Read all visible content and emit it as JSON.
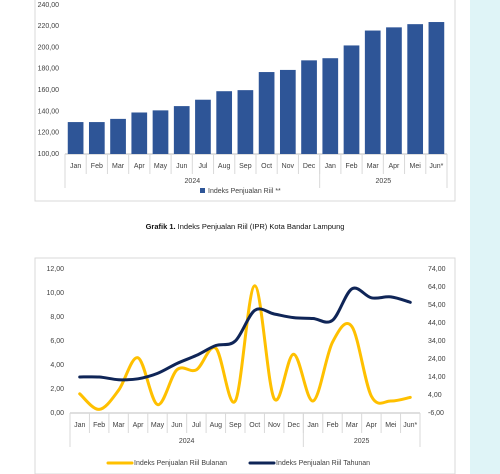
{
  "chart_data": [
    {
      "type": "bar",
      "caption_label": "Grafik 1.",
      "caption": "Indeks Penjualan Riil (IPR) Kota Bandar Lampung",
      "categories": [
        "Jan",
        "Feb",
        "Mar",
        "Apr",
        "May",
        "Jun",
        "Jul",
        "Aug",
        "Sep",
        "Oct",
        "Nov",
        "Dec",
        "Jan",
        "Feb",
        "Mar",
        "Apr",
        "Mei",
        "Jun*"
      ],
      "groups": [
        {
          "label": "2024",
          "count": 12
        },
        {
          "label": "2025",
          "count": 6
        }
      ],
      "series": [
        {
          "name": "Indeks Penjualan Riil **",
          "color": "#2e5597",
          "values": [
            130,
            130,
            133,
            139,
            141,
            145,
            151,
            159,
            160,
            177,
            179,
            188,
            190,
            202,
            216,
            219,
            222,
            224
          ]
        }
      ],
      "ylim": [
        100,
        240
      ],
      "yticks": [
        {
          "value": 100,
          "label": "100,00"
        },
        {
          "value": 120,
          "label": "120,00"
        },
        {
          "value": 140,
          "label": "140,00"
        },
        {
          "value": 160,
          "label": "160,00"
        },
        {
          "value": 180,
          "label": "180,00"
        },
        {
          "value": 200,
          "label": "200,00"
        },
        {
          "value": 220,
          "label": "220,00"
        },
        {
          "value": 240,
          "label": "240,00"
        }
      ]
    },
    {
      "type": "line",
      "categories": [
        "Jan",
        "Feb",
        "Mar",
        "Apr",
        "May",
        "Jun",
        "Jul",
        "Aug",
        "Sep",
        "Oct",
        "Nov",
        "Dec",
        "Jan",
        "Feb",
        "Mar",
        "Apr",
        "Mei",
        "Jun*"
      ],
      "groups": [
        {
          "label": "2024",
          "count": 12
        },
        {
          "label": "2025",
          "count": 6
        }
      ],
      "series": [
        {
          "name": "Indeks Penjualan Riil Bulanan",
          "color": "#ffc000",
          "values": [
            1.6,
            0.3,
            1.9,
            4.6,
            0.7,
            3.6,
            3.6,
            5.4,
            1.0,
            10.6,
            1.2,
            4.9,
            1.0,
            5.9,
            7.2,
            1.4,
            1.0,
            1.3
          ]
        },
        {
          "name": "Indeks Penjualan Riil Tahunan",
          "color": "#0f2557",
          "axis": "y2",
          "values": [
            14,
            14,
            12.5,
            13,
            16,
            21.5,
            26,
            31.5,
            34,
            51,
            49,
            47,
            46.5,
            45.5,
            63,
            58,
            58.5,
            55.5
          ]
        }
      ],
      "ylim": [
        0,
        12
      ],
      "yticks": [
        {
          "value": 0,
          "label": "0,00"
        },
        {
          "value": 2,
          "label": "2,00"
        },
        {
          "value": 4,
          "label": "4,00"
        },
        {
          "value": 6,
          "label": "6,00"
        },
        {
          "value": 8,
          "label": "8,00"
        },
        {
          "value": 10,
          "label": "10,00"
        },
        {
          "value": 12,
          "label": "12,00"
        }
      ],
      "y2lim": [
        -6,
        74
      ],
      "y2ticks": [
        {
          "value": -6,
          "label": "-6,00"
        },
        {
          "value": 4,
          "label": "4,00"
        },
        {
          "value": 14,
          "label": "14,00"
        },
        {
          "value": 24,
          "label": "24,00"
        },
        {
          "value": 34,
          "label": "34,00"
        },
        {
          "value": 44,
          "label": "44,00"
        },
        {
          "value": 54,
          "label": "54,00"
        },
        {
          "value": 64,
          "label": "64,00"
        },
        {
          "value": 74,
          "label": "74,00"
        }
      ]
    }
  ]
}
